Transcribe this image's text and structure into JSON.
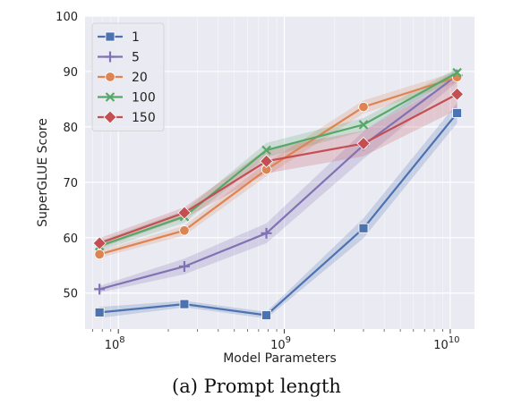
{
  "caption": "(a) Prompt length",
  "colors": {
    "background": "#eaeaf2",
    "grid": "#ffffff",
    "series": [
      "#4c72b0",
      "#8172b3",
      "#dd8452",
      "#55a868",
      "#c44e52"
    ]
  },
  "chart_data": {
    "type": "line",
    "xlabel": "Model Parameters",
    "ylabel": "SuperGLUE Score",
    "xscale": "log",
    "xlim": [
      63000000,
      14000000000
    ],
    "ylim": [
      43.5,
      100
    ],
    "xticks": [
      {
        "value": 100000000,
        "base": "10",
        "exp": "8"
      },
      {
        "value": 1000000000,
        "base": "10",
        "exp": "9"
      },
      {
        "value": 10000000000,
        "base": "10",
        "exp": "10"
      }
    ],
    "yticks": [
      50,
      60,
      70,
      80,
      90,
      100
    ],
    "grid": true,
    "legend_position": "top-left",
    "x": [
      77000000,
      250000000,
      780000000,
      3000000000,
      11000000000
    ],
    "series": [
      {
        "name": "1",
        "marker": "square",
        "values": [
          46.5,
          48.0,
          46.0,
          61.7,
          82.5
        ],
        "band": [
          1.0,
          0.6,
          0.6,
          1.8,
          1.8
        ]
      },
      {
        "name": "5",
        "marker": "plus",
        "values": [
          50.7,
          54.8,
          60.8,
          76.7,
          89.3
        ],
        "band": [
          0.6,
          1.4,
          1.8,
          2.5,
          1.2
        ]
      },
      {
        "name": "20",
        "marker": "circle",
        "values": [
          57.0,
          61.3,
          72.3,
          83.6,
          89.0
        ],
        "band": [
          0.6,
          0.9,
          1.2,
          1.2,
          1.0
        ]
      },
      {
        "name": "100",
        "marker": "x",
        "values": [
          58.5,
          63.8,
          75.8,
          80.4,
          89.8
        ],
        "band": [
          0.9,
          1.1,
          1.3,
          1.2,
          0.8
        ]
      },
      {
        "name": "150",
        "marker": "diamond",
        "values": [
          59.0,
          64.5,
          73.8,
          77.0,
          85.9
        ],
        "band": [
          0.9,
          1.0,
          2.2,
          2.3,
          2.8
        ]
      }
    ]
  }
}
